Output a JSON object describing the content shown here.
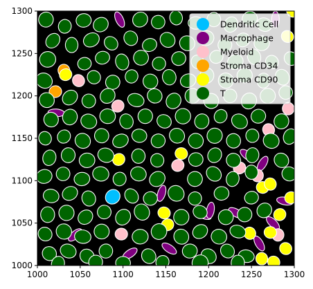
{
  "chart_data": {
    "type": "scatter",
    "title": "",
    "xlabel": "",
    "ylabel": "",
    "xlim": [
      1000,
      1300
    ],
    "ylim": [
      1000,
      1300
    ],
    "x_ticks": [
      1000,
      1050,
      1100,
      1150,
      1200,
      1250,
      1300
    ],
    "y_ticks": [
      1000,
      1050,
      1100,
      1150,
      1200,
      1250,
      1300
    ],
    "x_tick_labels": [
      "1000",
      "1050",
      "1100",
      "1150",
      "1200",
      "1250",
      "1300"
    ],
    "y_tick_labels": [
      "1000",
      "1050",
      "1100",
      "1150",
      "1200",
      "1250",
      "1300"
    ],
    "grid": false,
    "background": "#000000",
    "legend": {
      "placement": "top-right",
      "entries": [
        {
          "label": "Dendritic Cell",
          "color": "#00bfff"
        },
        {
          "label": "Macrophage",
          "color": "#800080"
        },
        {
          "label": "Myeloid",
          "color": "#ffc0cb"
        },
        {
          "label": "Stroma CD34",
          "color": "#ffa500"
        },
        {
          "label": "Stroma CD90",
          "color": "#ffff00"
        },
        {
          "label": "T",
          "color": "#006400"
        }
      ]
    },
    "series": [
      {
        "name": "Dendritic Cell",
        "color": "#00bfff",
        "points": [
          [
            1088,
            1081
          ]
        ]
      },
      {
        "name": "Macrophage",
        "color": "#800080",
        "points": [
          [
            1096,
            1290
          ],
          [
            1232,
            1062
          ],
          [
            1275,
            1050
          ],
          [
            1245,
            1130
          ],
          [
            1194,
            1060
          ],
          [
            1145,
            1085
          ],
          [
            1202,
            1065
          ],
          [
            1259,
            1026
          ],
          [
            1289,
            1076
          ],
          [
            1263,
            1120
          ],
          [
            1278,
            1290
          ],
          [
            1108,
            1014
          ],
          [
            1154,
            1020
          ],
          [
            1022,
            1180
          ],
          [
            1044,
            1036
          ]
        ]
      },
      {
        "name": "Myeloid",
        "color": "#ffc0cb",
        "points": [
          [
            1048,
            1218
          ],
          [
            1094,
            1188
          ],
          [
            1164,
            1118
          ],
          [
            1236,
            1115
          ],
          [
            1270,
            1160
          ],
          [
            1098,
            1037
          ],
          [
            1257,
            1106
          ],
          [
            1281,
            1036
          ],
          [
            1293,
            1185
          ]
        ]
      },
      {
        "name": "Stroma CD34",
        "color": "#ffa500",
        "points": [
          [
            1021,
            1205
          ],
          [
            1031,
            1230
          ]
        ]
      },
      {
        "name": "Stroma CD90",
        "color": "#ffff00",
        "points": [
          [
            1033,
            1225
          ],
          [
            1095,
            1125
          ],
          [
            1168,
            1132
          ],
          [
            1152,
            1048
          ],
          [
            1148,
            1062
          ],
          [
            1248,
            1038
          ],
          [
            1263,
            1092
          ],
          [
            1272,
            1096
          ],
          [
            1283,
            1060
          ],
          [
            1262,
            1008
          ],
          [
            1272,
            1039
          ],
          [
            1290,
            1020
          ],
          [
            1296,
            1080
          ],
          [
            1276,
            1004
          ],
          [
            1292,
            1270
          ],
          [
            1298,
            1300
          ]
        ]
      },
      {
        "name": "T",
        "color": "#006400",
        "points": [
          [
            1010,
            1290
          ],
          [
            1032,
            1282
          ],
          [
            1054,
            1289
          ],
          [
            1074,
            1284
          ],
          [
            1120,
            1290
          ],
          [
            1141,
            1287
          ],
          [
            1162,
            1292
          ],
          [
            1185,
            1286
          ],
          [
            1206,
            1290
          ],
          [
            1226,
            1284
          ],
          [
            1248,
            1291
          ],
          [
            1265,
            1284
          ],
          [
            1018,
            1265
          ],
          [
            1040,
            1260
          ],
          [
            1063,
            1266
          ],
          [
            1086,
            1262
          ],
          [
            1109,
            1268
          ],
          [
            1131,
            1260
          ],
          [
            1152,
            1266
          ],
          [
            1175,
            1262
          ],
          [
            1197,
            1268
          ],
          [
            1219,
            1260
          ],
          [
            1240,
            1266
          ],
          [
            1262,
            1262
          ],
          [
            1012,
            1243
          ],
          [
            1055,
            1238
          ],
          [
            1076,
            1245
          ],
          [
            1099,
            1240
          ],
          [
            1121,
            1245
          ],
          [
            1142,
            1238
          ],
          [
            1165,
            1244
          ],
          [
            1187,
            1240
          ],
          [
            1209,
            1246
          ],
          [
            1231,
            1240
          ],
          [
            1253,
            1246
          ],
          [
            1274,
            1240
          ],
          [
            1296,
            1244
          ],
          [
            1008,
            1218
          ],
          [
            1066,
            1222
          ],
          [
            1088,
            1216
          ],
          [
            1110,
            1223
          ],
          [
            1132,
            1217
          ],
          [
            1154,
            1222
          ],
          [
            1176,
            1218
          ],
          [
            1198,
            1224
          ],
          [
            1220,
            1218
          ],
          [
            1242,
            1224
          ],
          [
            1264,
            1218
          ],
          [
            1286,
            1222
          ],
          [
            1011,
            1195
          ],
          [
            1038,
            1198
          ],
          [
            1060,
            1194
          ],
          [
            1082,
            1200
          ],
          [
            1115,
            1195
          ],
          [
            1137,
            1200
          ],
          [
            1159,
            1194
          ],
          [
            1181,
            1200
          ],
          [
            1203,
            1194
          ],
          [
            1225,
            1200
          ],
          [
            1247,
            1194
          ],
          [
            1269,
            1200
          ],
          [
            1290,
            1204
          ],
          [
            1016,
            1172
          ],
          [
            1038,
            1175
          ],
          [
            1060,
            1170
          ],
          [
            1082,
            1176
          ],
          [
            1104,
            1170
          ],
          [
            1126,
            1176
          ],
          [
            1148,
            1170
          ],
          [
            1170,
            1176
          ],
          [
            1192,
            1170
          ],
          [
            1214,
            1176
          ],
          [
            1236,
            1170
          ],
          [
            1258,
            1176
          ],
          [
            1285,
            1170
          ],
          [
            1009,
            1150
          ],
          [
            1031,
            1152
          ],
          [
            1053,
            1147
          ],
          [
            1075,
            1153
          ],
          [
            1097,
            1147
          ],
          [
            1119,
            1153
          ],
          [
            1141,
            1147
          ],
          [
            1163,
            1153
          ],
          [
            1185,
            1147
          ],
          [
            1207,
            1153
          ],
          [
            1229,
            1147
          ],
          [
            1251,
            1153
          ],
          [
            1273,
            1147
          ],
          [
            1295,
            1152
          ],
          [
            1014,
            1127
          ],
          [
            1036,
            1130
          ],
          [
            1058,
            1124
          ],
          [
            1080,
            1130
          ],
          [
            1118,
            1129
          ],
          [
            1140,
            1124
          ],
          [
            1185,
            1125
          ],
          [
            1207,
            1130
          ],
          [
            1229,
            1124
          ],
          [
            1251,
            1130
          ],
          [
            1285,
            1124
          ],
          [
            1008,
            1105
          ],
          [
            1030,
            1108
          ],
          [
            1052,
            1102
          ],
          [
            1074,
            1108
          ],
          [
            1096,
            1102
          ],
          [
            1118,
            1108
          ],
          [
            1140,
            1102
          ],
          [
            1184,
            1102
          ],
          [
            1206,
            1108
          ],
          [
            1228,
            1102
          ],
          [
            1250,
            1110
          ],
          [
            1294,
            1108
          ],
          [
            1016,
            1082
          ],
          [
            1038,
            1085
          ],
          [
            1060,
            1079
          ],
          [
            1110,
            1082
          ],
          [
            1132,
            1079
          ],
          [
            1162,
            1085
          ],
          [
            1184,
            1079
          ],
          [
            1215,
            1085
          ],
          [
            1250,
            1080
          ],
          [
            1012,
            1060
          ],
          [
            1034,
            1062
          ],
          [
            1056,
            1057
          ],
          [
            1078,
            1063
          ],
          [
            1100,
            1057
          ],
          [
            1122,
            1063
          ],
          [
            1168,
            1057
          ],
          [
            1190,
            1063
          ],
          [
            1220,
            1057
          ],
          [
            1242,
            1060
          ],
          [
            1265,
            1065
          ],
          [
            1009,
            1037
          ],
          [
            1031,
            1040
          ],
          [
            1053,
            1034
          ],
          [
            1075,
            1040
          ],
          [
            1120,
            1034
          ],
          [
            1142,
            1040
          ],
          [
            1168,
            1034
          ],
          [
            1190,
            1040
          ],
          [
            1212,
            1034
          ],
          [
            1234,
            1040
          ],
          [
            1014,
            1014
          ],
          [
            1036,
            1017
          ],
          [
            1058,
            1011
          ],
          [
            1080,
            1017
          ],
          [
            1130,
            1011
          ],
          [
            1178,
            1017
          ],
          [
            1200,
            1011
          ],
          [
            1222,
            1017
          ],
          [
            1244,
            1011
          ],
          [
            1024,
            1002
          ],
          [
            1068,
            1004
          ],
          [
            1100,
            1003
          ],
          [
            1146,
            1004
          ],
          [
            1190,
            1003
          ],
          [
            1234,
            1003
          ]
        ]
      }
    ]
  }
}
